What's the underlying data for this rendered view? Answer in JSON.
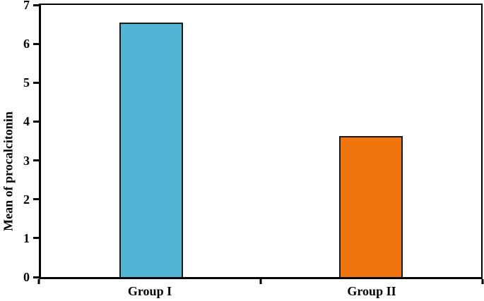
{
  "chart_data": {
    "type": "bar",
    "title": "",
    "xlabel": "",
    "ylabel": "Mean of procalcitonin",
    "categories": [
      "Group I",
      "Group II"
    ],
    "values": [
      6.54,
      3.63
    ],
    "ylim": [
      0,
      7
    ],
    "y_ticks": [
      0,
      1,
      2,
      3,
      4,
      5,
      6,
      7
    ],
    "bar_colors": [
      "#53b5d5",
      "#f0750e"
    ],
    "bar_border_color": "#1a1a1a",
    "axis_color": "#000000",
    "background_color": "#ffffff",
    "grid": false,
    "legend": "none"
  }
}
